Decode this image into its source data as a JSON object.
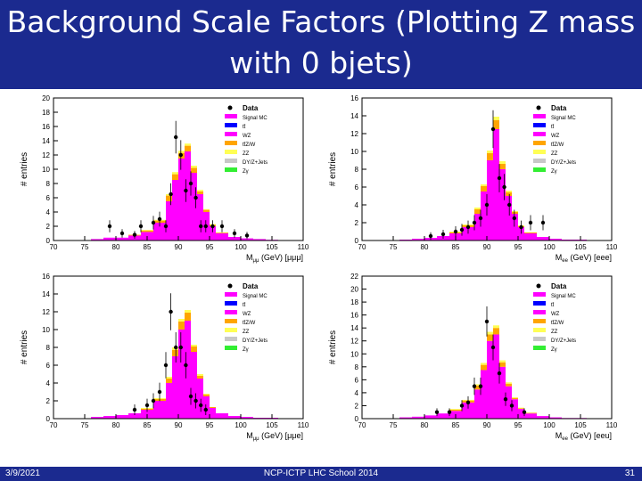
{
  "slide": {
    "title": "Background Scale Factors (Plotting Z mass with 0 bjets)",
    "footer_date": "3/9/2021",
    "footer_center": "NCP-ICTP LHC School 2014",
    "page_number": "31"
  },
  "colors": {
    "title_bg": "#1b2a8f",
    "signal_mc": "#ff00ff",
    "ttbar": "#0000ff",
    "wz": "#ff00ff",
    "ttzw": "#ffa500",
    "zz": "#ffff55",
    "dy": "#c8c8c8",
    "zgamma": "#33ee33",
    "data": "#000000"
  },
  "chart_data": [
    {
      "type": "bar",
      "ylabel": "# entries",
      "xlabel": "M",
      "xlabel_sub": "μμ",
      "xlabel_unit": "(GeV) [μμμ]",
      "xlim": [
        70,
        110
      ],
      "ylim": [
        0,
        20
      ],
      "xticks": [
        70,
        75,
        80,
        85,
        90,
        95,
        100,
        105,
        110
      ],
      "yticks": [
        0,
        2,
        4,
        6,
        8,
        10,
        12,
        14,
        16,
        18,
        20
      ],
      "bin_edges": [
        76,
        78,
        80,
        82,
        84,
        86,
        88,
        89,
        90,
        91,
        92,
        93,
        94,
        95,
        96,
        98,
        100,
        102,
        104,
        106
      ],
      "wz": [
        0.2,
        0.4,
        0.4,
        0.7,
        1.2,
        2.5,
        5.5,
        8.5,
        11.5,
        12.5,
        9.5,
        6.5,
        4.0,
        2.0,
        1.0,
        0.5,
        0.3,
        0.2,
        0.1
      ],
      "ttzw": [
        0,
        0,
        0,
        0.1,
        0.2,
        0.3,
        0.8,
        0.8,
        0.8,
        0.8,
        0.7,
        0.4,
        0.3,
        0.2,
        0.1,
        0,
        0,
        0,
        0
      ],
      "zz": [
        0,
        0,
        0,
        0,
        0.1,
        0.1,
        0.2,
        0.3,
        0.3,
        0.3,
        0.3,
        0.2,
        0.1,
        0.1,
        0,
        0,
        0,
        0,
        0
      ],
      "legend": [
        {
          "label": "Data",
          "key": "data"
        },
        {
          "label": "Signal MC",
          "key": "signal_mc"
        },
        {
          "label": "tt̄",
          "key": "ttbar"
        },
        {
          "label": "WZ",
          "key": "wz"
        },
        {
          "label": "tt̄Z/W",
          "key": "ttzw"
        },
        {
          "label": "ZZ",
          "key": "zz"
        },
        {
          "label": "DY/Z+Jets",
          "key": "dy"
        },
        {
          "label": "Zγ",
          "key": "zgamma"
        }
      ],
      "data_x": [
        79,
        81,
        83,
        84,
        86,
        87,
        88,
        88.8,
        89.6,
        90.4,
        91.2,
        92,
        92.8,
        93.6,
        94.4,
        95.5,
        97,
        99,
        101
      ],
      "data_y": [
        2,
        1,
        0.8,
        2,
        2.5,
        3,
        2,
        6.5,
        14.5,
        12,
        7,
        8,
        6,
        2,
        2,
        2,
        2,
        1,
        0.7
      ]
    },
    {
      "type": "bar",
      "ylabel": "# entries",
      "xlabel": "M",
      "xlabel_sub": "ee",
      "xlabel_unit": "(GeV) [eee]",
      "xlim": [
        70,
        110
      ],
      "ylim": [
        0,
        16
      ],
      "xticks": [
        70,
        75,
        80,
        85,
        90,
        95,
        100,
        105,
        110
      ],
      "yticks": [
        0,
        2,
        4,
        6,
        8,
        10,
        12,
        14,
        16
      ],
      "bin_edges": [
        76,
        78,
        80,
        82,
        84,
        86,
        88,
        89,
        90,
        91,
        92,
        93,
        94,
        95,
        96,
        98,
        100,
        102,
        104,
        106
      ],
      "wz": [
        0.1,
        0.2,
        0.3,
        0.5,
        0.8,
        1.5,
        3.0,
        5.5,
        9.0,
        12.5,
        8.0,
        5.0,
        3.0,
        1.5,
        0.8,
        0.4,
        0.2,
        0.1,
        0.1
      ],
      "ttzw": [
        0,
        0,
        0,
        0,
        0.1,
        0.2,
        0.5,
        0.6,
        0.8,
        1.0,
        0.6,
        0.4,
        0.2,
        0.1,
        0.1,
        0,
        0,
        0,
        0
      ],
      "zz": [
        0,
        0,
        0,
        0,
        0.1,
        0.1,
        0.2,
        0.2,
        0.3,
        0.4,
        0.3,
        0.2,
        0.1,
        0.1,
        0,
        0,
        0,
        0,
        0
      ],
      "legend": [
        {
          "label": "Data",
          "key": "data"
        },
        {
          "label": "Signal MC",
          "key": "signal_mc"
        },
        {
          "label": "tt̄",
          "key": "ttbar"
        },
        {
          "label": "WZ",
          "key": "wz"
        },
        {
          "label": "tt̄Z/W",
          "key": "ttzw"
        },
        {
          "label": "ZZ",
          "key": "zz"
        },
        {
          "label": "DY/Z+Jets",
          "key": "dy"
        },
        {
          "label": "Zγ",
          "key": "zgamma"
        }
      ],
      "data_x": [
        81,
        83,
        85,
        86,
        87,
        88,
        89,
        90,
        91,
        92,
        92.8,
        93.6,
        94.4,
        95.5,
        97,
        99
      ],
      "data_y": [
        0.5,
        0.7,
        1,
        1.2,
        1.5,
        2,
        2.5,
        4,
        12.5,
        7,
        6,
        4,
        2.5,
        1.5,
        2,
        2
      ]
    },
    {
      "type": "bar",
      "ylabel": "# entries",
      "xlabel": "M",
      "xlabel_sub": "μμ",
      "xlabel_unit": "(GeV) [μμe]",
      "xlim": [
        70,
        110
      ],
      "ylim": [
        0,
        16
      ],
      "xticks": [
        70,
        75,
        80,
        85,
        90,
        95,
        100,
        105,
        110
      ],
      "yticks": [
        0,
        2,
        4,
        6,
        8,
        10,
        12,
        14,
        16
      ],
      "bin_edges": [
        76,
        78,
        80,
        82,
        84,
        86,
        88,
        89,
        90,
        91,
        92,
        93,
        94,
        95,
        96,
        98,
        100,
        102,
        104,
        106
      ],
      "wz": [
        0.2,
        0.3,
        0.4,
        0.6,
        1.0,
        2.0,
        4.0,
        7.0,
        10.0,
        11.0,
        7.5,
        4.5,
        2.5,
        1.2,
        0.6,
        0.3,
        0.2,
        0.1,
        0.1
      ],
      "ttzw": [
        0,
        0,
        0,
        0,
        0.1,
        0.2,
        0.5,
        0.7,
        0.9,
        0.9,
        0.6,
        0.3,
        0.2,
        0.1,
        0,
        0,
        0,
        0,
        0
      ],
      "zz": [
        0,
        0,
        0,
        0,
        0.1,
        0.1,
        0.2,
        0.3,
        0.3,
        0.3,
        0.2,
        0.2,
        0.1,
        0,
        0,
        0,
        0,
        0,
        0
      ],
      "legend": [
        {
          "label": "Data",
          "key": "data"
        },
        {
          "label": "Signal MC",
          "key": "signal_mc"
        },
        {
          "label": "tt̄",
          "key": "ttbar"
        },
        {
          "label": "WZ",
          "key": "wz"
        },
        {
          "label": "tt̄Z/W",
          "key": "ttzw"
        },
        {
          "label": "ZZ",
          "key": "zz"
        },
        {
          "label": "DY/Z+Jets",
          "key": "dy"
        },
        {
          "label": "Zγ",
          "key": "zgamma"
        }
      ],
      "data_x": [
        83,
        85,
        86,
        87,
        88,
        88.8,
        89.6,
        90.4,
        91.2,
        92,
        92.8,
        93.6,
        94.4
      ],
      "data_y": [
        1,
        1.5,
        2,
        3,
        6,
        12,
        8,
        8,
        6,
        2.5,
        2,
        1.5,
        1
      ]
    },
    {
      "type": "bar",
      "ylabel": "# entries",
      "xlabel": "M",
      "xlabel_sub": "ee",
      "xlabel_unit": "(GeV) [eeu]",
      "xlim": [
        70,
        110
      ],
      "ylim": [
        0,
        22
      ],
      "xticks": [
        70,
        75,
        80,
        85,
        90,
        95,
        100,
        105,
        110
      ],
      "yticks": [
        0,
        2,
        4,
        6,
        8,
        10,
        12,
        14,
        16,
        18,
        20,
        22
      ],
      "bin_edges": [
        76,
        78,
        80,
        82,
        84,
        86,
        88,
        89,
        90,
        91,
        92,
        93,
        94,
        95,
        96,
        98,
        100,
        102,
        104,
        106
      ],
      "wz": [
        0.2,
        0.3,
        0.5,
        0.8,
        1.2,
        2.5,
        4.5,
        7.5,
        12.0,
        13.0,
        8.0,
        5.0,
        3.0,
        1.5,
        0.8,
        0.4,
        0.2,
        0.1,
        0.1
      ],
      "ttzw": [
        0,
        0,
        0,
        0,
        0.2,
        0.3,
        0.6,
        0.8,
        1.0,
        1.0,
        0.7,
        0.4,
        0.2,
        0.1,
        0.1,
        0,
        0,
        0,
        0
      ],
      "zz": [
        0,
        0,
        0,
        0,
        0.1,
        0.1,
        0.2,
        0.3,
        0.4,
        0.4,
        0.3,
        0.2,
        0.1,
        0.1,
        0,
        0,
        0,
        0,
        0
      ],
      "legend": [
        {
          "label": "Data",
          "key": "data"
        },
        {
          "label": "Signal MC",
          "key": "signal_mc"
        },
        {
          "label": "tt̄",
          "key": "ttbar"
        },
        {
          "label": "WZ",
          "key": "wz"
        },
        {
          "label": "tt̄Z/W",
          "key": "ttzw"
        },
        {
          "label": "ZZ",
          "key": "zz"
        },
        {
          "label": "DY/Z+Jets",
          "key": "dy"
        },
        {
          "label": "Zγ",
          "key": "zgamma"
        }
      ],
      "data_x": [
        82,
        84,
        86,
        87,
        88,
        89,
        90,
        91,
        92,
        93,
        94,
        96
      ],
      "data_y": [
        1,
        1,
        2,
        2.5,
        5,
        5,
        15,
        11,
        7,
        3,
        2,
        1
      ]
    }
  ]
}
